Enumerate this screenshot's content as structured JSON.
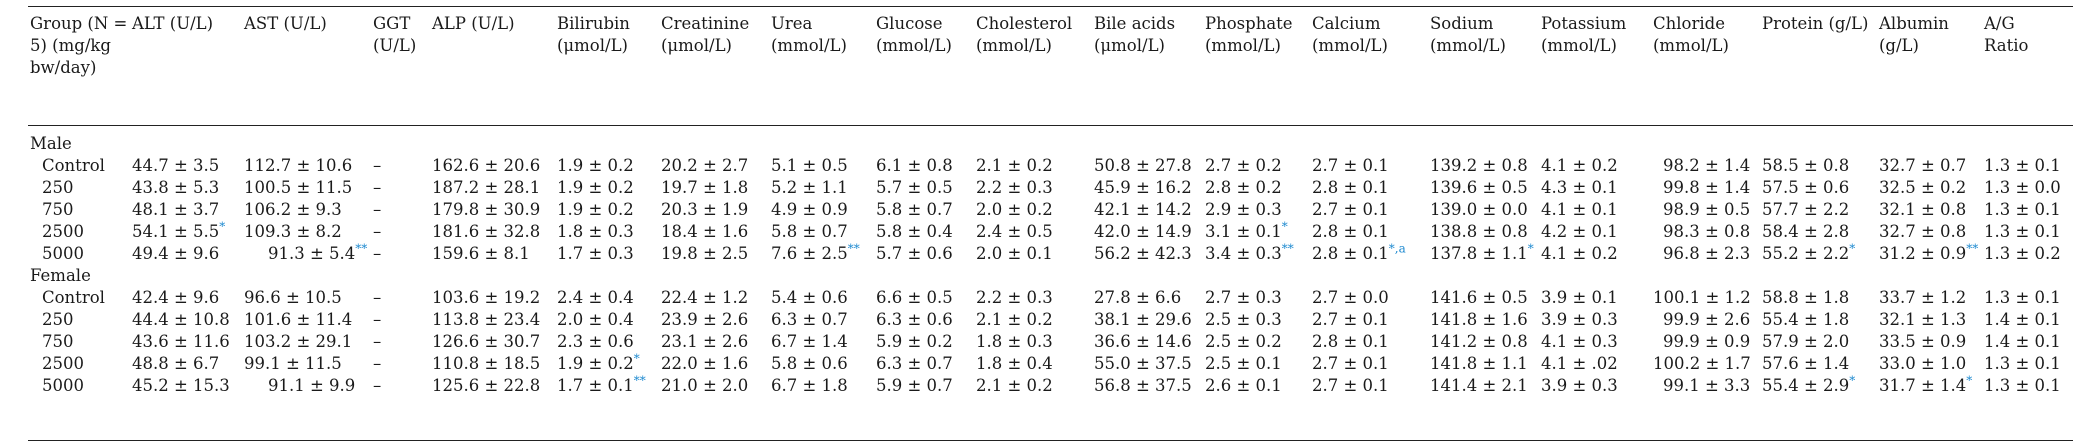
{
  "table": {
    "headers": [
      "Group (N = 5) (mg/kg bw/day)",
      "ALT (U/L)",
      "AST (U/L)",
      "GGT (U/L)",
      "ALP (U/L)",
      "Bilirubin (μmol/L)",
      "Creatinine (μmol/L)",
      "Urea (mmol/L)",
      "Glucose (mmol/L)",
      "Cholesterol (mmol/L)",
      "Bile acids (μmol/L)",
      "Phosphate (mmol/L)",
      "Calcium (mmol/L)",
      "Sodium (mmol/L)",
      "Potassium (mmol/L)",
      "Chloride (mmol/L)",
      "Protein (g/L)",
      "Albumin (g/L)",
      "A/G Ratio"
    ],
    "sections": [
      {
        "label": "Male",
        "rows": [
          {
            "cells": [
              {
                "v": "Control"
              },
              {
                "v": "44.7 ± 3.5"
              },
              {
                "v": "112.7 ± 10.6"
              },
              {
                "v": "–"
              },
              {
                "v": "162.6 ± 20.6"
              },
              {
                "v": "1.9 ± 0.2"
              },
              {
                "v": "20.2 ± 2.7"
              },
              {
                "v": "5.1 ± 0.5"
              },
              {
                "v": "6.1 ± 0.8"
              },
              {
                "v": "2.1 ± 0.2"
              },
              {
                "v": "50.8 ± 27.8"
              },
              {
                "v": "2.7 ± 0.2"
              },
              {
                "v": "2.7 ± 0.1"
              },
              {
                "v": "139.2 ± 0.8"
              },
              {
                "v": "4.1 ± 0.2"
              },
              {
                "v": "98.2 ± 1.4"
              },
              {
                "v": "58.5 ± 0.8"
              },
              {
                "v": "32.7 ± 0.7"
              },
              {
                "v": "1.3 ± 0.1"
              }
            ]
          },
          {
            "cells": [
              {
                "v": "250"
              },
              {
                "v": "43.8 ± 5.3"
              },
              {
                "v": "100.5 ± 11.5"
              },
              {
                "v": "–"
              },
              {
                "v": "187.2 ± 28.1"
              },
              {
                "v": "1.9 ± 0.2"
              },
              {
                "v": "19.7 ± 1.8"
              },
              {
                "v": "5.2 ± 1.1"
              },
              {
                "v": "5.7 ± 0.5"
              },
              {
                "v": "2.2 ± 0.3"
              },
              {
                "v": "45.9 ± 16.2"
              },
              {
                "v": "2.8 ± 0.2"
              },
              {
                "v": "2.8 ± 0.1"
              },
              {
                "v": "139.6 ± 0.5"
              },
              {
                "v": "4.3 ± 0.1"
              },
              {
                "v": "99.8 ± 1.4"
              },
              {
                "v": "57.5 ± 0.6"
              },
              {
                "v": "32.5 ± 0.2"
              },
              {
                "v": "1.3 ± 0.0"
              }
            ]
          },
          {
            "cells": [
              {
                "v": "750"
              },
              {
                "v": "48.1 ± 3.7"
              },
              {
                "v": "106.2 ± 9.3"
              },
              {
                "v": "–"
              },
              {
                "v": "179.8 ± 30.9"
              },
              {
                "v": "1.9 ± 0.2"
              },
              {
                "v": "20.3 ± 1.9"
              },
              {
                "v": "4.9 ± 0.9"
              },
              {
                "v": "5.8 ± 0.7"
              },
              {
                "v": "2.0 ± 0.2"
              },
              {
                "v": "42.1 ± 14.2"
              },
              {
                "v": "2.9 ± 0.3"
              },
              {
                "v": "2.7 ± 0.1"
              },
              {
                "v": "139.0 ± 0.0"
              },
              {
                "v": "4.1 ± 0.1"
              },
              {
                "v": "98.9 ± 0.5"
              },
              {
                "v": "57.7 ± 2.2"
              },
              {
                "v": "32.1 ± 0.8"
              },
              {
                "v": "1.3 ± 0.1"
              }
            ]
          },
          {
            "cells": [
              {
                "v": "2500"
              },
              {
                "v": "54.1 ± 5.5",
                "s": "*"
              },
              {
                "v": "109.3 ± 8.2"
              },
              {
                "v": "–"
              },
              {
                "v": "181.6 ± 32.8"
              },
              {
                "v": "1.8 ± 0.3"
              },
              {
                "v": "18.4 ± 1.6"
              },
              {
                "v": "5.8 ± 0.7"
              },
              {
                "v": "5.8 ± 0.4"
              },
              {
                "v": "2.4 ± 0.5"
              },
              {
                "v": "42.0 ± 14.9"
              },
              {
                "v": "3.1 ± 0.1",
                "s": "*"
              },
              {
                "v": "2.8 ± 0.1"
              },
              {
                "v": "138.8 ± 0.8"
              },
              {
                "v": "4.2 ± 0.1"
              },
              {
                "v": "98.3 ± 0.8"
              },
              {
                "v": "58.4 ± 2.8"
              },
              {
                "v": "32.7 ± 0.8"
              },
              {
                "v": "1.3 ± 0.1"
              }
            ]
          },
          {
            "cells": [
              {
                "v": "5000"
              },
              {
                "v": "49.4 ± 9.6"
              },
              {
                "v": "91.3 ± 5.4",
                "s": "**"
              },
              {
                "v": "–"
              },
              {
                "v": "159.6 ± 8.1"
              },
              {
                "v": "1.7 ± 0.3"
              },
              {
                "v": "19.8 ± 2.5"
              },
              {
                "v": "7.6 ± 2.5",
                "s": "**"
              },
              {
                "v": "5.7 ± 0.6"
              },
              {
                "v": "2.0 ± 0.1"
              },
              {
                "v": "56.2 ± 42.3"
              },
              {
                "v": "3.4 ± 0.3",
                "s": "**"
              },
              {
                "v": "2.8 ± 0.1",
                "s": "*,a"
              },
              {
                "v": "137.8 ± 1.1",
                "s": "*"
              },
              {
                "v": "4.1 ± 0.2"
              },
              {
                "v": "96.8 ± 2.3"
              },
              {
                "v": "55.2 ± 2.2",
                "s": "*"
              },
              {
                "v": "31.2 ± 0.9",
                "s": "**"
              },
              {
                "v": "1.3 ± 0.2"
              }
            ]
          }
        ]
      },
      {
        "label": "Female",
        "rows": [
          {
            "cells": [
              {
                "v": "Control"
              },
              {
                "v": "42.4 ± 9.6"
              },
              {
                "v": "96.6 ± 10.5"
              },
              {
                "v": "–"
              },
              {
                "v": "103.6 ± 19.2"
              },
              {
                "v": "2.4 ± 0.4"
              },
              {
                "v": "22.4 ± 1.2"
              },
              {
                "v": "5.4 ± 0.6"
              },
              {
                "v": "6.6 ± 0.5"
              },
              {
                "v": "2.2 ± 0.3"
              },
              {
                "v": "27.8 ± 6.6"
              },
              {
                "v": "2.7 ± 0.3"
              },
              {
                "v": "2.7 ± 0.0"
              },
              {
                "v": "141.6 ± 0.5"
              },
              {
                "v": "3.9 ± 0.1"
              },
              {
                "v": "100.1 ± 1.2"
              },
              {
                "v": "58.8 ± 1.8"
              },
              {
                "v": "33.7 ± 1.2"
              },
              {
                "v": "1.3 ± 0.1"
              }
            ]
          },
          {
            "cells": [
              {
                "v": "250"
              },
              {
                "v": "44.4 ± 10.8"
              },
              {
                "v": "101.6 ± 11.4"
              },
              {
                "v": "–"
              },
              {
                "v": "113.8 ± 23.4"
              },
              {
                "v": "2.0 ± 0.4"
              },
              {
                "v": "23.9 ± 2.6"
              },
              {
                "v": "6.3 ± 0.7"
              },
              {
                "v": "6.3 ± 0.6"
              },
              {
                "v": "2.1 ± 0.2"
              },
              {
                "v": "38.1 ± 29.6"
              },
              {
                "v": "2.5 ± 0.3"
              },
              {
                "v": "2.7 ± 0.1"
              },
              {
                "v": "141.8 ± 1.6"
              },
              {
                "v": "3.9 ± 0.3"
              },
              {
                "v": "99.9 ± 2.6"
              },
              {
                "v": "55.4 ± 1.8"
              },
              {
                "v": "32.1 ± 1.3"
              },
              {
                "v": "1.4 ± 0.1"
              }
            ]
          },
          {
            "cells": [
              {
                "v": "750"
              },
              {
                "v": "43.6 ± 11.6"
              },
              {
                "v": "103.2 ± 29.1"
              },
              {
                "v": "–"
              },
              {
                "v": "126.6 ± 30.7"
              },
              {
                "v": "2.3 ± 0.6"
              },
              {
                "v": "23.1 ± 2.6"
              },
              {
                "v": "6.7 ± 1.4"
              },
              {
                "v": "5.9 ± 0.2"
              },
              {
                "v": "1.8 ± 0.3"
              },
              {
                "v": "36.6 ± 14.6"
              },
              {
                "v": "2.5 ± 0.2"
              },
              {
                "v": "2.8 ± 0.1"
              },
              {
                "v": "141.2 ± 0.8"
              },
              {
                "v": "4.1 ± 0.3"
              },
              {
                "v": "99.9 ± 0.9"
              },
              {
                "v": "57.9 ± 2.0"
              },
              {
                "v": "33.5 ± 0.9"
              },
              {
                "v": "1.4 ± 0.1"
              }
            ]
          },
          {
            "cells": [
              {
                "v": "2500"
              },
              {
                "v": "48.8 ± 6.7"
              },
              {
                "v": "99.1 ± 11.5"
              },
              {
                "v": "–"
              },
              {
                "v": "110.8 ± 18.5"
              },
              {
                "v": "1.9 ± 0.2",
                "s": "*"
              },
              {
                "v": "22.0 ± 1.6"
              },
              {
                "v": "5.8 ± 0.6"
              },
              {
                "v": "6.3 ± 0.7"
              },
              {
                "v": "1.8 ± 0.4"
              },
              {
                "v": "55.0 ± 37.5"
              },
              {
                "v": "2.5 ± 0.1"
              },
              {
                "v": "2.7 ± 0.1"
              },
              {
                "v": "141.8 ± 1.1"
              },
              {
                "v": "4.1 ± .02"
              },
              {
                "v": "100.2 ± 1.7"
              },
              {
                "v": "57.6 ± 1.4"
              },
              {
                "v": "33.0 ± 1.0"
              },
              {
                "v": "1.3 ± 0.1"
              }
            ]
          },
          {
            "cells": [
              {
                "v": "5000"
              },
              {
                "v": "45.2 ± 15.3"
              },
              {
                "v": "91.1 ± 9.9"
              },
              {
                "v": "–"
              },
              {
                "v": "125.6 ± 22.8"
              },
              {
                "v": "1.7 ± 0.1",
                "s": "**"
              },
              {
                "v": "21.0 ± 2.0"
              },
              {
                "v": "6.7 ± 1.8"
              },
              {
                "v": "5.9 ± 0.7"
              },
              {
                "v": "2.1 ± 0.2"
              },
              {
                "v": "56.8 ± 37.5"
              },
              {
                "v": "2.6 ± 0.1"
              },
              {
                "v": "2.7 ± 0.1"
              },
              {
                "v": "141.4 ± 2.1"
              },
              {
                "v": "3.9 ± 0.3"
              },
              {
                "v": "99.1 ± 3.3"
              },
              {
                "v": "55.4 ± 2.9",
                "s": "*"
              },
              {
                "v": "31.7 ± 1.4",
                "s": "*"
              },
              {
                "v": "1.3 ± 0.1"
              }
            ]
          }
        ]
      }
    ]
  },
  "colors": {
    "significance_marker": "#1f8ad0",
    "rule": "#222222",
    "text": "#1a1a1a"
  }
}
